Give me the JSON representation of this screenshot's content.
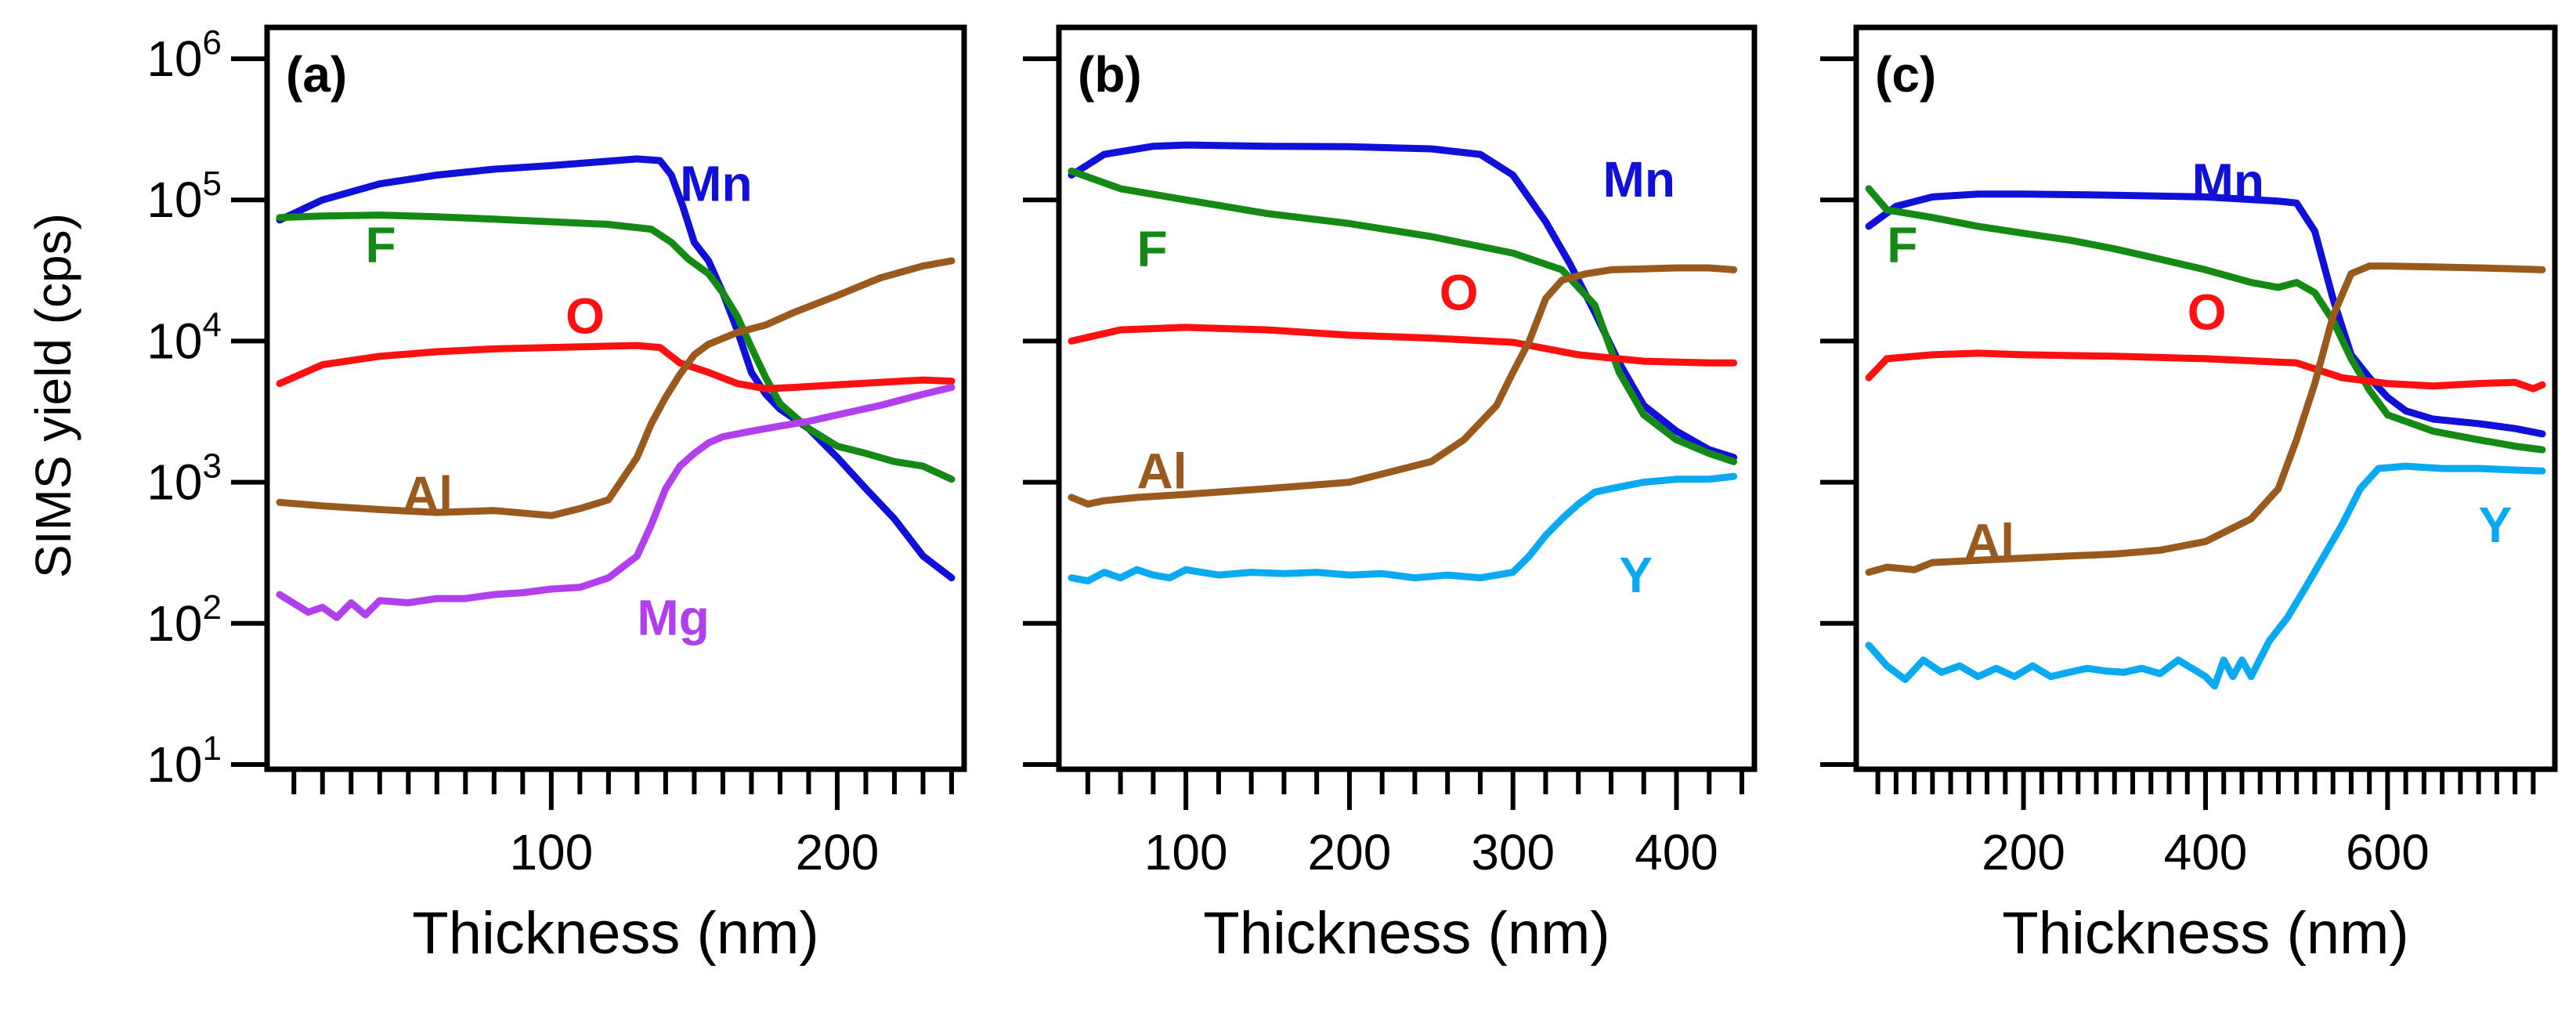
{
  "chart_data": [
    {
      "panel": "(a)",
      "type": "line",
      "title": "",
      "xlabel": "Thickness (nm)",
      "ylabel": "SIMS yield (cps)",
      "yscale": "log",
      "xlim": [
        5,
        240
      ],
      "ylim": [
        10,
        1000000
      ],
      "x_ticks": [
        100,
        200
      ],
      "x_tick_labels": [
        "100",
        "200"
      ],
      "x_minor_step": 10,
      "y_tick_labels": [
        {
          "base": "10",
          "exp": "1",
          "value": 10
        },
        {
          "base": "10",
          "exp": "2",
          "value": 100
        },
        {
          "base": "10",
          "exp": "3",
          "value": 1000
        },
        {
          "base": "10",
          "exp": "4",
          "value": 10000
        },
        {
          "base": "10",
          "exp": "5",
          "value": 100000
        },
        {
          "base": "10",
          "exp": "6",
          "value": 1000000
        }
      ],
      "series": [
        {
          "name": "Mn",
          "color": "#1010d8",
          "label_at": [
            145,
            130000
          ],
          "x": [
            5,
            20,
            40,
            60,
            80,
            100,
            115,
            130,
            138,
            142,
            146,
            150,
            155,
            160,
            165,
            170,
            175,
            180,
            190,
            200,
            210,
            220,
            230,
            240
          ],
          "y": [
            72000,
            100000,
            130000,
            150000,
            165000,
            175000,
            185000,
            195000,
            190000,
            150000,
            90000,
            50000,
            37000,
            22000,
            12000,
            6000,
            4200,
            3300,
            2400,
            1500,
            900,
            550,
            300,
            210
          ]
        },
        {
          "name": "F",
          "color": "#148a14",
          "label_at": [
            35,
            48000
          ],
          "x": [
            5,
            20,
            40,
            60,
            80,
            100,
            120,
            135,
            142,
            148,
            155,
            160,
            165,
            170,
            175,
            180,
            190,
            200,
            210,
            220,
            230,
            240
          ],
          "y": [
            75000,
            77000,
            78000,
            76000,
            73000,
            70000,
            67000,
            62000,
            50000,
            38000,
            30000,
            22000,
            15000,
            9000,
            5500,
            3600,
            2400,
            1800,
            1600,
            1400,
            1300,
            1050
          ]
        },
        {
          "name": "O",
          "color": "#ff1010",
          "label_at": [
            105,
            15000
          ],
          "x": [
            5,
            20,
            40,
            60,
            80,
            100,
            120,
            130,
            138,
            145,
            155,
            165,
            175,
            185,
            200,
            215,
            230,
            240
          ],
          "y": [
            5000,
            6800,
            7800,
            8400,
            8800,
            9000,
            9200,
            9300,
            9000,
            7000,
            6000,
            5000,
            4600,
            4700,
            4900,
            5100,
            5300,
            5200
          ]
        },
        {
          "name": "Al",
          "color": "#9a5a1e",
          "label_at": [
            48,
            820
          ],
          "x": [
            5,
            20,
            40,
            60,
            80,
            100,
            110,
            120,
            130,
            135,
            140,
            145,
            150,
            155,
            165,
            175,
            185,
            200,
            215,
            230,
            240
          ],
          "y": [
            720,
            680,
            640,
            610,
            630,
            580,
            650,
            750,
            1500,
            2600,
            4000,
            5800,
            8000,
            9500,
            11500,
            13000,
            16000,
            21000,
            28000,
            34000,
            37000
          ]
        },
        {
          "name": "Mg",
          "color": "#b040ee",
          "label_at": [
            130,
            110
          ],
          "x": [
            5,
            15,
            20,
            25,
            30,
            35,
            40,
            50,
            60,
            70,
            80,
            90,
            100,
            110,
            120,
            130,
            135,
            140,
            145,
            150,
            155,
            160,
            170,
            180,
            190,
            200,
            215,
            230,
            240
          ],
          "y": [
            160,
            120,
            130,
            110,
            140,
            115,
            145,
            140,
            150,
            150,
            160,
            165,
            175,
            180,
            210,
            300,
            500,
            900,
            1300,
            1600,
            1900,
            2100,
            2300,
            2500,
            2700,
            3000,
            3500,
            4200,
            4700
          ]
        }
      ]
    },
    {
      "panel": "(b)",
      "type": "line",
      "title": "",
      "xlabel": "Thickness (nm)",
      "ylabel": "",
      "yscale": "log",
      "xlim": [
        30,
        440
      ],
      "ylim": [
        10,
        1000000
      ],
      "x_ticks": [
        100,
        200,
        300,
        400
      ],
      "x_tick_labels": [
        "100",
        "200",
        "300",
        "400"
      ],
      "x_minor_step": 20,
      "y_tick_labels": [],
      "series": [
        {
          "name": "Mn",
          "color": "#1010d8",
          "label_at": [
            355,
            140000
          ],
          "x": [
            30,
            50,
            80,
            100,
            150,
            200,
            250,
            280,
            300,
            320,
            335,
            350,
            365,
            380,
            400,
            420,
            435
          ],
          "y": [
            150000,
            210000,
            240000,
            245000,
            240000,
            238000,
            230000,
            210000,
            150000,
            70000,
            35000,
            16000,
            7000,
            3500,
            2300,
            1700,
            1500
          ]
        },
        {
          "name": "F",
          "color": "#148a14",
          "label_at": [
            70,
            45000
          ],
          "x": [
            30,
            60,
            100,
            150,
            200,
            250,
            300,
            330,
            350,
            365,
            380,
            400,
            420,
            435
          ],
          "y": [
            160000,
            120000,
            100000,
            80000,
            68000,
            55000,
            42000,
            32000,
            18000,
            6000,
            3000,
            2000,
            1600,
            1400
          ]
        },
        {
          "name": "O",
          "color": "#ff1010",
          "label_at": [
            255,
            22000
          ],
          "x": [
            30,
            60,
            100,
            150,
            200,
            250,
            300,
            340,
            380,
            420,
            435
          ],
          "y": [
            10000,
            12000,
            12500,
            12000,
            11000,
            10500,
            9800,
            8000,
            7200,
            7000,
            7000
          ]
        },
        {
          "name": "Al",
          "color": "#9a5a1e",
          "label_at": [
            70,
            1200
          ],
          "x": [
            30,
            40,
            50,
            70,
            100,
            150,
            200,
            250,
            270,
            290,
            300,
            310,
            320,
            330,
            345,
            360,
            380,
            400,
            420,
            435
          ],
          "y": [
            780,
            700,
            740,
            780,
            820,
            900,
            1000,
            1400,
            2000,
            3500,
            6000,
            10000,
            20000,
            27000,
            30000,
            32000,
            32500,
            33000,
            33000,
            32000
          ]
        },
        {
          "name": "Y",
          "color": "#0aaaf2",
          "label_at": [
            365,
            220
          ],
          "x": [
            30,
            40,
            50,
            60,
            70,
            80,
            90,
            100,
            120,
            140,
            160,
            180,
            200,
            220,
            240,
            260,
            280,
            300,
            310,
            320,
            330,
            340,
            350,
            360,
            380,
            400,
            420,
            435
          ],
          "y": [
            210,
            200,
            230,
            210,
            240,
            220,
            210,
            240,
            220,
            230,
            225,
            230,
            220,
            225,
            210,
            220,
            210,
            230,
            300,
            420,
            550,
            700,
            850,
            900,
            1000,
            1050,
            1050,
            1100
          ]
        }
      ]
    },
    {
      "panel": "(c)",
      "type": "line",
      "title": "",
      "xlabel": "Thickness (nm)",
      "ylabel": "",
      "yscale": "log",
      "xlim": [
        30,
        770
      ],
      "ylim": [
        10,
        1000000
      ],
      "x_ticks": [
        200,
        400,
        600
      ],
      "x_tick_labels": [
        "200",
        "400",
        "600"
      ],
      "x_minor_step": 20,
      "y_tick_labels": [],
      "series": [
        {
          "name": "Mn",
          "color": "#1010d8",
          "label_at": [
            385,
            135000
          ],
          "x": [
            30,
            60,
            100,
            150,
            200,
            300,
            400,
            480,
            500,
            520,
            540,
            560,
            580,
            600,
            620,
            650,
            700,
            740,
            770
          ],
          "y": [
            65000,
            90000,
            105000,
            110000,
            110000,
            108000,
            105000,
            98000,
            95000,
            60000,
            20000,
            8000,
            5500,
            4000,
            3200,
            2800,
            2600,
            2400,
            2200
          ]
        },
        {
          "name": "F",
          "color": "#148a14",
          "label_at": [
            50,
            48000
          ],
          "x": [
            30,
            50,
            100,
            150,
            200,
            250,
            300,
            350,
            400,
            450,
            480,
            500,
            520,
            540,
            560,
            580,
            600,
            650,
            700,
            740,
            770
          ],
          "y": [
            120000,
            85000,
            75000,
            65000,
            58000,
            52000,
            45000,
            38000,
            32000,
            26000,
            24000,
            26000,
            22000,
            14000,
            7500,
            4500,
            3000,
            2300,
            2000,
            1800,
            1700
          ]
        },
        {
          "name": "O",
          "color": "#ff1010",
          "label_at": [
            380,
            16000
          ],
          "x": [
            30,
            50,
            100,
            150,
            200,
            300,
            400,
            500,
            550,
            600,
            650,
            700,
            740,
            760,
            770
          ],
          "y": [
            5500,
            7500,
            8000,
            8200,
            8000,
            7800,
            7500,
            7000,
            5500,
            5000,
            4800,
            5000,
            5100,
            4600,
            4900
          ]
        },
        {
          "name": "Al",
          "color": "#9a5a1e",
          "label_at": [
            135,
            380
          ],
          "x": [
            30,
            50,
            80,
            100,
            150,
            200,
            250,
            300,
            350,
            400,
            450,
            480,
            500,
            520,
            540,
            560,
            580,
            600,
            650,
            700,
            740,
            770
          ],
          "y": [
            230,
            250,
            240,
            270,
            280,
            290,
            300,
            310,
            330,
            380,
            550,
            900,
            2000,
            5000,
            15000,
            30000,
            34000,
            34000,
            33500,
            33000,
            32500,
            32000
          ]
        },
        {
          "name": "Y",
          "color": "#0aaaf2",
          "label_at": [
            700,
            500
          ],
          "x": [
            30,
            50,
            70,
            90,
            110,
            130,
            150,
            170,
            190,
            210,
            230,
            250,
            270,
            290,
            310,
            330,
            350,
            370,
            390,
            400,
            410,
            420,
            430,
            440,
            450,
            470,
            490,
            510,
            530,
            550,
            570,
            590,
            620,
            660,
            700,
            740,
            770
          ],
          "y": [
            70,
            50,
            40,
            55,
            45,
            50,
            42,
            48,
            42,
            50,
            42,
            45,
            48,
            46,
            45,
            48,
            44,
            55,
            46,
            42,
            36,
            55,
            42,
            55,
            42,
            75,
            110,
            180,
            300,
            500,
            900,
            1250,
            1300,
            1250,
            1250,
            1220,
            1200
          ]
        }
      ]
    }
  ]
}
